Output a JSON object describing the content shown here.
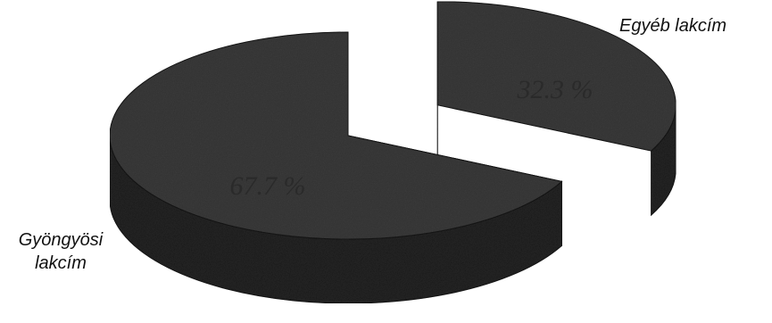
{
  "chart_data": {
    "type": "pie",
    "title": "",
    "categories": [
      "Gyöngyösi lakcím",
      "Egyéb lakcím"
    ],
    "values": [
      67.7,
      32.3
    ],
    "data_labels": [
      "67.7 %",
      "32.3 %"
    ],
    "legend": {
      "placement": "labels-outside",
      "entries": [
        {
          "line1": "Gyöngyösi",
          "line2": "lakcím"
        },
        {
          "line1": "Egyéb lakcím"
        }
      ]
    },
    "colors": {
      "slice_top": "#3d3d3d",
      "slice_side": "#262626",
      "slice_edge": "#1a1a1a",
      "label_text": "#2a2a2a"
    },
    "exploded": "Egyéb lakcím",
    "style": "3d"
  }
}
